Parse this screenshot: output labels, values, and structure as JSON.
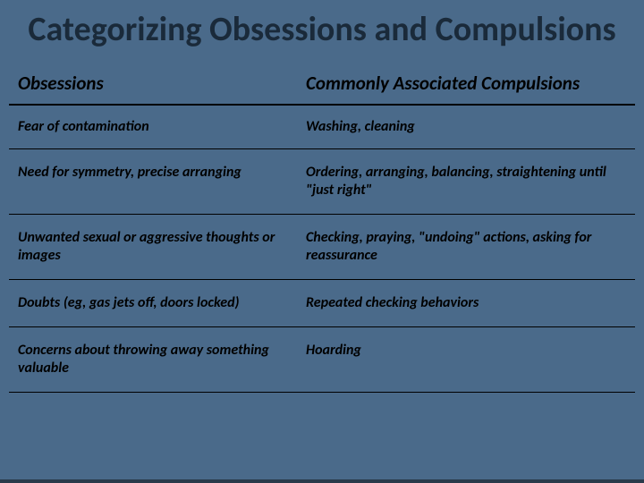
{
  "slide": {
    "title": "Categorizing Obsessions and Compulsions",
    "background_color": "#4a6a8a",
    "title_color": "#1a2a3a",
    "title_fontsize": 38,
    "border_color": "#000000",
    "footer_band_color": "#2a3a4a"
  },
  "table": {
    "columns": [
      "Obsessions",
      "Commonly Associated Compulsions"
    ],
    "column_widths_pct": [
      46,
      54
    ],
    "header_fontsize": 21,
    "cell_fontsize": 16,
    "font_style": "italic",
    "font_weight": "bold",
    "rows": [
      [
        "Fear of contamination",
        "Washing, cleaning"
      ],
      [
        "Need for symmetry, precise arranging",
        "Ordering, arranging, balancing, straightening until \"just right\""
      ],
      [
        "Unwanted sexual or aggressive thoughts or images",
        "Checking, praying, \"undoing\" actions, asking for reassurance"
      ],
      [
        "Doubts (eg, gas jets off, doors locked)",
        "Repeated checking behaviors"
      ],
      [
        "Concerns about throwing away something valuable",
        "Hoarding"
      ]
    ]
  }
}
